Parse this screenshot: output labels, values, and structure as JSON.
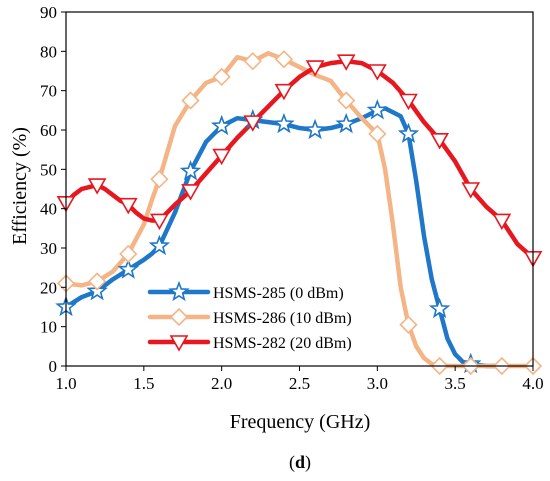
{
  "chart_data": {
    "type": "line",
    "xlabel": "Frequency (GHz)",
    "ylabel": "Efficiency (%)",
    "xlim": [
      1.0,
      4.0
    ],
    "ylim": [
      0,
      90
    ],
    "xticks": [
      "1.0",
      "1.5",
      "2.0",
      "2.5",
      "3.0",
      "3.5",
      "4.0"
    ],
    "yticks": [
      "0",
      "10",
      "20",
      "30",
      "40",
      "50",
      "60",
      "70",
      "80",
      "90"
    ],
    "caption": {
      "open": "(",
      "letter": "d",
      "close": ")"
    },
    "legend_position": "lower-left",
    "grid": false,
    "series": [
      {
        "name": "HSMS-285 (0 dBm)",
        "color": "#1f77c9",
        "marker": "star",
        "x": [
          1.0,
          1.1,
          1.2,
          1.3,
          1.4,
          1.5,
          1.55,
          1.6,
          1.7,
          1.8,
          1.9,
          2.0,
          2.1,
          2.2,
          2.3,
          2.4,
          2.5,
          2.6,
          2.7,
          2.8,
          2.9,
          3.0,
          3.05,
          3.1,
          3.15,
          3.2,
          3.25,
          3.3,
          3.35,
          3.4,
          3.45,
          3.5,
          3.55,
          3.6,
          3.7,
          3.8
        ],
        "y": [
          15,
          17.5,
          19,
          22,
          24.5,
          27,
          28.5,
          30.5,
          39,
          49.5,
          57,
          61,
          63,
          62.5,
          62,
          61.5,
          60.5,
          60,
          60.5,
          61.5,
          63,
          65,
          65.5,
          64.5,
          63.5,
          59,
          47,
          33,
          22,
          14.5,
          7,
          3,
          1,
          0.5,
          0,
          0
        ],
        "marker_x": [
          1.0,
          1.2,
          1.4,
          1.6,
          1.8,
          2.0,
          2.2,
          2.4,
          2.6,
          2.8,
          3.0,
          3.2,
          3.4,
          3.6
        ],
        "marker_y": [
          15,
          19,
          24.5,
          30.5,
          49.5,
          61,
          62.5,
          61.5,
          60,
          61.5,
          65,
          59,
          14.5,
          0.5
        ]
      },
      {
        "name": "HSMS-286 (10 dBm)",
        "color": "#f5b485",
        "marker": "diamond",
        "x": [
          1.0,
          1.1,
          1.2,
          1.3,
          1.4,
          1.5,
          1.55,
          1.6,
          1.7,
          1.8,
          1.9,
          2.0,
          2.1,
          2.2,
          2.3,
          2.4,
          2.5,
          2.6,
          2.7,
          2.8,
          2.9,
          2.95,
          3.0,
          3.05,
          3.1,
          3.15,
          3.2,
          3.25,
          3.3,
          3.35,
          3.4,
          3.5,
          3.6,
          3.7,
          3.8,
          3.9,
          4.0
        ],
        "y": [
          21,
          20.5,
          21.5,
          24,
          28.5,
          36,
          42,
          47.5,
          61,
          67.5,
          72,
          73.5,
          78.5,
          77.5,
          79.5,
          78,
          76,
          74,
          72.5,
          67.5,
          63,
          61,
          59,
          50,
          36,
          20,
          10.5,
          5,
          2,
          0.5,
          0,
          0,
          0,
          0,
          0,
          0,
          0
        ],
        "marker_x": [
          1.0,
          1.2,
          1.4,
          1.6,
          1.8,
          2.0,
          2.2,
          2.4,
          2.8,
          3.0,
          3.2,
          3.4,
          3.6,
          3.8,
          4.0
        ],
        "marker_y": [
          21,
          21.5,
          28.5,
          47.5,
          67.5,
          73.5,
          77.5,
          78,
          67.5,
          59,
          10.5,
          0,
          0,
          0,
          0
        ]
      },
      {
        "name": "HSMS-282 (20 dBm)",
        "color": "#e8161e",
        "marker": "triangle-down",
        "x": [
          1.0,
          1.05,
          1.1,
          1.15,
          1.2,
          1.25,
          1.3,
          1.35,
          1.4,
          1.45,
          1.5,
          1.55,
          1.6,
          1.7,
          1.8,
          1.9,
          2.0,
          2.1,
          2.2,
          2.3,
          2.4,
          2.5,
          2.6,
          2.7,
          2.8,
          2.9,
          3.0,
          3.1,
          3.2,
          3.3,
          3.4,
          3.5,
          3.6,
          3.7,
          3.8,
          3.9,
          4.0
        ],
        "y": [
          41.5,
          43.5,
          45,
          45.5,
          46,
          45,
          43.5,
          42,
          41,
          39,
          37.5,
          37,
          37,
          41,
          44.5,
          49,
          53.5,
          58,
          62,
          66,
          70,
          73.5,
          76,
          77,
          77.5,
          77,
          75,
          72,
          67.5,
          62,
          57.5,
          52,
          45,
          40.5,
          37,
          31,
          27.5
        ],
        "marker_x": [
          1.0,
          1.2,
          1.4,
          1.6,
          1.8,
          2.0,
          2.2,
          2.4,
          2.6,
          2.8,
          3.0,
          3.2,
          3.4,
          3.6,
          3.8,
          4.0
        ],
        "marker_y": [
          41.5,
          46,
          41,
          37,
          44.5,
          53.5,
          62,
          70,
          76,
          77.5,
          75,
          67.5,
          57.5,
          45,
          37,
          27.5
        ]
      }
    ]
  }
}
